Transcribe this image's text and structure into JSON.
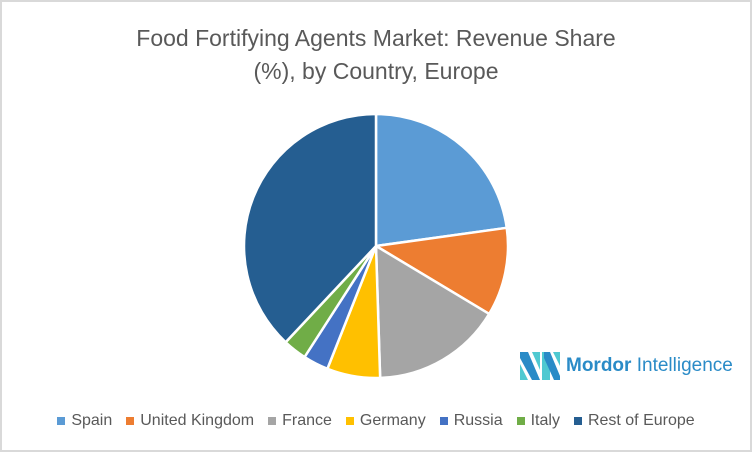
{
  "title": {
    "line1": "Food Fortifying Agents Market: Revenue Share",
    "line2": "(%), by Country, Europe"
  },
  "logo": {
    "brand_bold": "Mordor",
    "brand_light": "Intelligence",
    "color": "#2a8bc7",
    "accent": "#4fc9d1"
  },
  "legend": [
    {
      "label": "Spain",
      "color": "#5b9bd5"
    },
    {
      "label": "United Kingdom",
      "color": "#ed7d31"
    },
    {
      "label": "France",
      "color": "#a5a5a5"
    },
    {
      "label": "Germany",
      "color": "#ffc000"
    },
    {
      "label": "Russia",
      "color": "#4472c4"
    },
    {
      "label": "Italy",
      "color": "#70ad47"
    },
    {
      "label": "Rest of Europe",
      "color": "#255e91"
    }
  ],
  "chart_data": {
    "type": "pie",
    "title": "Food Fortifying Agents Market: Revenue Share (%), by Country, Europe",
    "categories": [
      "Spain",
      "United Kingdom",
      "France",
      "Germany",
      "Russia",
      "Italy",
      "Rest of Europe"
    ],
    "values": [
      22.8,
      10.8,
      15.9,
      6.5,
      3.1,
      2.9,
      38.0
    ],
    "colors": [
      "#5b9bd5",
      "#ed7d31",
      "#a5a5a5",
      "#ffc000",
      "#4472c4",
      "#70ad47",
      "#255e91"
    ],
    "start_angle": "12 o'clock, clockwise",
    "legend_position": "bottom",
    "data_labels": false
  }
}
